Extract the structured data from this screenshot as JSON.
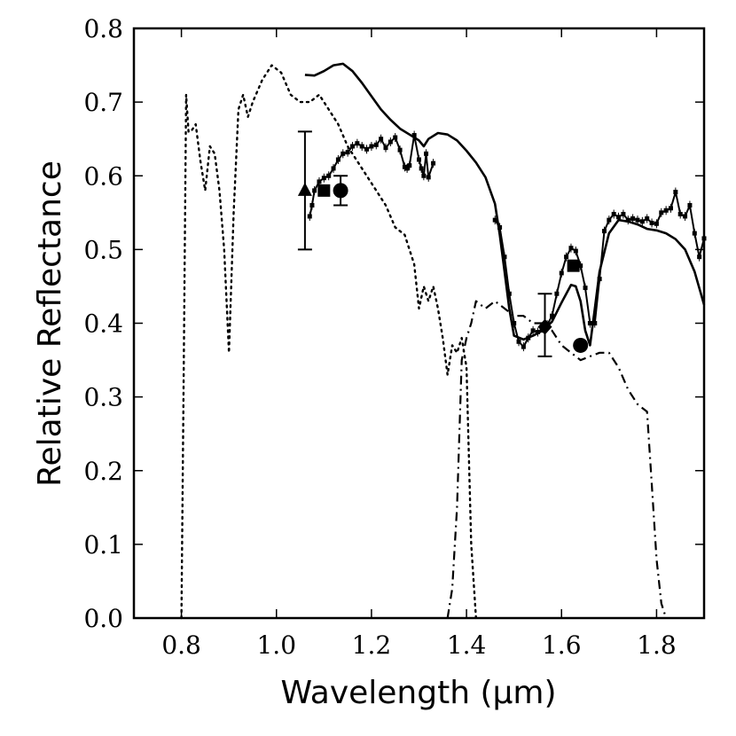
{
  "chart_data": {
    "type": "line",
    "xlabel": "Wavelength (μm)",
    "ylabel": "Relative Reflectance",
    "xlim": [
      0.7,
      1.9
    ],
    "ylim": [
      0.0,
      0.8
    ],
    "grid": false,
    "x_ticks": [
      0.8,
      1.0,
      1.2,
      1.4,
      1.6,
      1.8
    ],
    "x_tick_labels": [
      "0.8",
      "1.0",
      "1.2",
      "1.4",
      "1.6",
      "1.8"
    ],
    "y_ticks": [
      0.0,
      0.1,
      0.2,
      0.3,
      0.4,
      0.5,
      0.6,
      0.7,
      0.8
    ],
    "y_tick_labels": [
      "0.0",
      "0.1",
      "0.2",
      "0.3",
      "0.4",
      "0.5",
      "0.6",
      "0.7",
      "0.8"
    ],
    "series": [
      {
        "style": "solid",
        "x": [
          1.06,
          1.08,
          1.1,
          1.12,
          1.14,
          1.16,
          1.18,
          1.2,
          1.22,
          1.24,
          1.26,
          1.28,
          1.3,
          1.31,
          1.32,
          1.34,
          1.36,
          1.38,
          1.4,
          1.42,
          1.44,
          1.46,
          1.47,
          1.48,
          1.49,
          1.5,
          1.52,
          1.54,
          1.56,
          1.58,
          1.6,
          1.62,
          1.63,
          1.64,
          1.65,
          1.66,
          1.67,
          1.68,
          1.7,
          1.72,
          1.74,
          1.76,
          1.78,
          1.8,
          1.82,
          1.84,
          1.86,
          1.88,
          1.9
        ],
        "y": [
          0.737,
          0.736,
          0.742,
          0.75,
          0.752,
          0.742,
          0.726,
          0.708,
          0.69,
          0.676,
          0.664,
          0.656,
          0.648,
          0.64,
          0.65,
          0.658,
          0.656,
          0.648,
          0.634,
          0.618,
          0.598,
          0.562,
          0.52,
          0.47,
          0.42,
          0.383,
          0.378,
          0.383,
          0.39,
          0.402,
          0.428,
          0.452,
          0.45,
          0.43,
          0.39,
          0.37,
          0.42,
          0.47,
          0.522,
          0.54,
          0.538,
          0.534,
          0.528,
          0.526,
          0.522,
          0.514,
          0.5,
          0.47,
          0.425
        ]
      },
      {
        "style": "line-square-markers",
        "x": [
          1.07,
          1.075,
          1.08,
          1.09,
          1.1,
          1.11,
          1.12,
          1.13,
          1.14,
          1.15,
          1.16,
          1.17,
          1.18,
          1.19,
          1.2,
          1.21,
          1.22,
          1.23,
          1.24,
          1.25,
          1.26,
          1.27,
          1.275,
          1.28,
          1.29,
          1.3,
          1.305,
          1.31,
          1.315,
          1.32,
          1.33
        ],
        "y": [
          0.545,
          0.56,
          0.58,
          0.592,
          0.597,
          0.6,
          0.61,
          0.622,
          0.63,
          0.632,
          0.64,
          0.644,
          0.64,
          0.636,
          0.64,
          0.642,
          0.65,
          0.638,
          0.646,
          0.652,
          0.635,
          0.612,
          0.61,
          0.614,
          0.655,
          0.622,
          0.61,
          0.6,
          0.63,
          0.598,
          0.617
        ]
      },
      {
        "style": "line-square-markers",
        "x": [
          1.46,
          1.47,
          1.48,
          1.49,
          1.5,
          1.51,
          1.52,
          1.53,
          1.54,
          1.55,
          1.56,
          1.57,
          1.58,
          1.59,
          1.6,
          1.61,
          1.62,
          1.63,
          1.64,
          1.65,
          1.66,
          1.67,
          1.68,
          1.69,
          1.7,
          1.71,
          1.72,
          1.73,
          1.74,
          1.75,
          1.76,
          1.77,
          1.78,
          1.79,
          1.8,
          1.81,
          1.82,
          1.83,
          1.84,
          1.85,
          1.86,
          1.87,
          1.88,
          1.89,
          1.9
        ],
        "y": [
          0.54,
          0.53,
          0.49,
          0.44,
          0.4,
          0.375,
          0.368,
          0.38,
          0.39,
          0.388,
          0.393,
          0.398,
          0.41,
          0.44,
          0.468,
          0.49,
          0.502,
          0.498,
          0.478,
          0.448,
          0.4,
          0.4,
          0.46,
          0.525,
          0.54,
          0.548,
          0.544,
          0.548,
          0.54,
          0.542,
          0.54,
          0.538,
          0.542,
          0.536,
          0.535,
          0.55,
          0.553,
          0.556,
          0.578,
          0.548,
          0.545,
          0.56,
          0.522,
          0.49,
          0.515
        ]
      },
      {
        "style": "dotted",
        "x": [
          0.8,
          0.805,
          0.81,
          0.815,
          0.82,
          0.83,
          0.84,
          0.85,
          0.86,
          0.87,
          0.88,
          0.89,
          0.9,
          0.91,
          0.92,
          0.93,
          0.94,
          0.95,
          0.97,
          0.99,
          1.01,
          1.03,
          1.05,
          1.07,
          1.09,
          1.11,
          1.13,
          1.15,
          1.17,
          1.19,
          1.21,
          1.23,
          1.25,
          1.27,
          1.29,
          1.3,
          1.31,
          1.32,
          1.33,
          1.34,
          1.35,
          1.36,
          1.37,
          1.38,
          1.39,
          1.4,
          1.41,
          1.42
        ],
        "y": [
          0.0,
          0.35,
          0.71,
          0.66,
          0.66,
          0.67,
          0.62,
          0.58,
          0.64,
          0.63,
          0.58,
          0.5,
          0.36,
          0.55,
          0.69,
          0.71,
          0.68,
          0.7,
          0.73,
          0.75,
          0.74,
          0.71,
          0.7,
          0.7,
          0.71,
          0.69,
          0.67,
          0.64,
          0.62,
          0.6,
          0.58,
          0.56,
          0.53,
          0.52,
          0.48,
          0.42,
          0.45,
          0.43,
          0.45,
          0.42,
          0.38,
          0.33,
          0.37,
          0.36,
          0.38,
          0.34,
          0.1,
          0.0
        ]
      },
      {
        "style": "dash-dot",
        "x": [
          1.36,
          1.37,
          1.38,
          1.39,
          1.4,
          1.41,
          1.42,
          1.44,
          1.46,
          1.48,
          1.5,
          1.52,
          1.54,
          1.56,
          1.58,
          1.6,
          1.62,
          1.64,
          1.66,
          1.68,
          1.7,
          1.72,
          1.74,
          1.76,
          1.78,
          1.79,
          1.8,
          1.81,
          1.82
        ],
        "y": [
          0.0,
          0.04,
          0.15,
          0.35,
          0.38,
          0.4,
          0.43,
          0.42,
          0.43,
          0.42,
          0.41,
          0.41,
          0.4,
          0.4,
          0.39,
          0.37,
          0.36,
          0.35,
          0.355,
          0.36,
          0.36,
          0.34,
          0.31,
          0.29,
          0.28,
          0.18,
          0.08,
          0.02,
          0.0
        ]
      }
    ],
    "points": [
      {
        "marker": "triangle",
        "x": 1.06,
        "y": 0.58,
        "yerr": [
          0.5,
          0.66
        ]
      },
      {
        "marker": "square",
        "x": 1.1,
        "y": 0.58
      },
      {
        "marker": "circle",
        "x": 1.135,
        "y": 0.58,
        "yerr": [
          0.56,
          0.6
        ]
      },
      {
        "marker": "diamond",
        "x": 1.565,
        "y": 0.395,
        "yerr": [
          0.355,
          0.44
        ]
      },
      {
        "marker": "square",
        "x": 1.625,
        "y": 0.478
      },
      {
        "marker": "circle",
        "x": 1.64,
        "y": 0.37
      }
    ]
  }
}
